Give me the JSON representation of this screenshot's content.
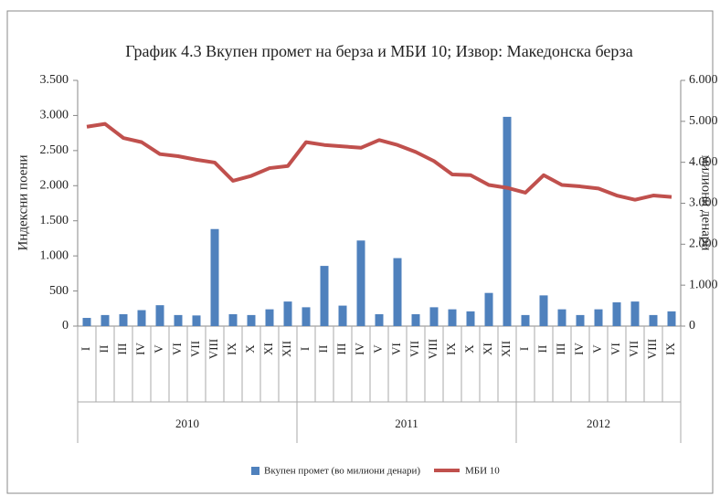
{
  "chart_data": {
    "type": "bar-line",
    "title": "График 4.3 Вкупен промет на берза и МБИ 10; Извор: Македонска берза",
    "y_label": "Индексни поени",
    "y2_label": "милиони денари",
    "category_groups": [
      {
        "label": "2010",
        "months": [
          "I",
          "II",
          "III",
          "IV",
          "V",
          "VI",
          "VII",
          "VIII",
          "IX",
          "X",
          "XI",
          "XII"
        ]
      },
      {
        "label": "2011",
        "months": [
          "I",
          "II",
          "III",
          "IV",
          "V",
          "VI",
          "VII",
          "VIII",
          "IX",
          "X",
          "XI",
          "XII"
        ]
      },
      {
        "label": "2012",
        "months": [
          "I",
          "II",
          "III",
          "IV",
          "V",
          "VI",
          "VII",
          "VIII",
          "IX"
        ]
      }
    ],
    "ylim": [
      0,
      3500
    ],
    "yticks": [
      0,
      {
        "value": 500,
        "label": "500"
      },
      {
        "value": 1000,
        "label": "1.000"
      },
      {
        "value": 1500,
        "label": "1.500"
      },
      {
        "value": 2000,
        "label": "2.000"
      },
      {
        "value": 2500,
        "label": "2.500"
      },
      {
        "value": 3000,
        "label": "3.000"
      },
      {
        "value": 3500,
        "label": "3.500"
      }
    ],
    "y2lim": [
      0,
      6000
    ],
    "y2ticks": [
      0,
      {
        "value": 1000,
        "label": "1.000"
      },
      {
        "value": 2000,
        "label": "2.000"
      },
      {
        "value": 3000,
        "label": "3.000"
      },
      {
        "value": 4000,
        "label": "4.000"
      },
      {
        "value": 5000,
        "label": "5.000"
      },
      {
        "value": 6000,
        "label": "6.000"
      }
    ],
    "series": [
      {
        "name": "Вкупен промет (во милиони денари)",
        "kind": "bar",
        "axis": "y2",
        "color": "#4f81bd",
        "values": [
          200,
          270,
          290,
          390,
          510,
          270,
          260,
          2370,
          290,
          270,
          410,
          600,
          460,
          1470,
          500,
          2090,
          290,
          1660,
          290,
          460,
          410,
          360,
          810,
          5110,
          270,
          750,
          410,
          270,
          410,
          580,
          600,
          270,
          360
        ]
      },
      {
        "name": "МБИ 10",
        "kind": "line",
        "axis": "y",
        "color": "#c0504d",
        "values": [
          2840,
          2880,
          2680,
          2620,
          2450,
          2420,
          2370,
          2330,
          2070,
          2140,
          2250,
          2280,
          2620,
          2580,
          2560,
          2540,
          2650,
          2580,
          2480,
          2350,
          2160,
          2150,
          2010,
          1970,
          1900,
          2150,
          2010,
          1990,
          1960,
          1860,
          1800,
          1860,
          1840
        ]
      }
    ]
  }
}
